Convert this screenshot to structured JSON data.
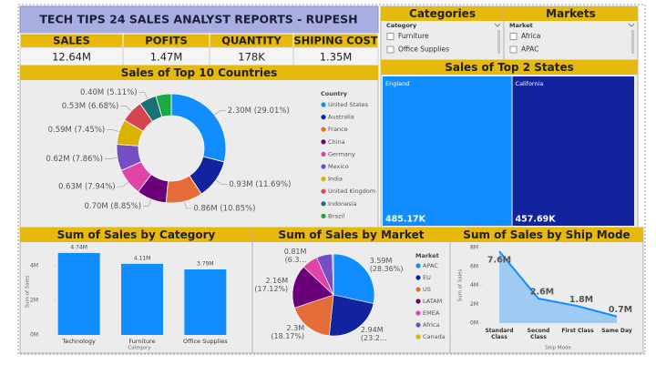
{
  "header": {
    "title": "TECH TIPS 24 SALES ANALYST REPORTS - RUPESH"
  },
  "kpis": [
    {
      "label": "SALES",
      "value": "12.64M"
    },
    {
      "label": "POFITS",
      "value": "1.47M"
    },
    {
      "label": "QUANTITY",
      "value": "178K"
    },
    {
      "label": "SHIPING COST",
      "value": "1.35M"
    }
  ],
  "slicers": [
    {
      "title": "Categories",
      "field": "Category",
      "items": [
        "Furniture",
        "Office Supplies"
      ]
    },
    {
      "title": "Markets",
      "field": "Market",
      "items": [
        "Africa",
        "APAC"
      ]
    }
  ],
  "chart_data": [
    {
      "type": "donut",
      "title": "Sales of Top 10 Countries",
      "legend_title": "Country",
      "categories": [
        "United States",
        "Australia",
        "France",
        "China",
        "Germany",
        "Mexico",
        "India",
        "United Kingdom",
        "Indonesia",
        "Brazil"
      ],
      "values": [
        29.01,
        11.69,
        10.85,
        8.85,
        7.94,
        7.86,
        7.45,
        6.68,
        5.11,
        4.56
      ],
      "value_labels": [
        "2.30M (29.01%)",
        "0.93M (11.69%)",
        "0.86M (10.85%)",
        "0.70M (8.85%)",
        "0.63M (7.94%)",
        "0.62M (7.86%)",
        "0.59M (7.45%)",
        "0.53M (6.68%)",
        "0.40M (5.11%)",
        null
      ],
      "colors": [
        "#118dff",
        "#12239e",
        "#e66c37",
        "#6b007b",
        "#e044a7",
        "#744ec2",
        "#d9b300",
        "#d64550",
        "#197278",
        "#1aab40"
      ]
    },
    {
      "type": "treemap",
      "title": "Sales of Top 2 States",
      "categories": [
        "England",
        "California"
      ],
      "values": [
        485.17,
        457.69
      ],
      "value_labels": [
        "485.17K",
        "457.69K"
      ],
      "colors": [
        "#118dff",
        "#12239e"
      ]
    },
    {
      "type": "bar",
      "title": "Sum of Sales by Category",
      "categories": [
        "Technology",
        "Furniture",
        "Office Supplies"
      ],
      "values": [
        4.74,
        4.11,
        3.79
      ],
      "value_labels": [
        "4.74M",
        "4.11M",
        "3.79M"
      ],
      "color": "#118dff",
      "ylim": [
        0,
        5
      ],
      "yticks": [
        {
          "value": 0,
          "label": "0M"
        },
        {
          "value": 2,
          "label": "2M"
        },
        {
          "value": 4,
          "label": "4M"
        }
      ],
      "y_label": "Sum of Sales",
      "x_label": "Category"
    },
    {
      "type": "pie",
      "title": "Sum of Sales by Market",
      "legend_title": "Market",
      "categories": [
        "APAC",
        "EU",
        "US",
        "LATAM",
        "EMEA",
        "Africa",
        "Canada"
      ],
      "values": [
        28.36,
        23.2,
        18.17,
        17.12,
        6.3,
        6.16,
        0.52
      ],
      "value_labels": [
        "3.59M (28.36%)",
        "2.94M (23.2…",
        "2.3M (18.17%)",
        "2.16M (17.12%)",
        "0.81M (6.3…",
        null,
        null
      ],
      "colors": [
        "#118dff",
        "#12239e",
        "#e66c37",
        "#6b007b",
        "#e044a7",
        "#744ec2",
        "#d9b300"
      ]
    },
    {
      "type": "area",
      "title": "Sum of Sales by Ship Mode",
      "categories": [
        "Standard Class",
        "Second Class",
        "First Class",
        "Same Day"
      ],
      "values": [
        7.6,
        2.6,
        1.8,
        0.7
      ],
      "value_labels": [
        "7.6M",
        "2.6M",
        "1.8M",
        "0.7M"
      ],
      "color": "#118dff",
      "ylim": [
        0,
        8
      ],
      "yticks": [
        {
          "value": 0,
          "label": "0M"
        },
        {
          "value": 2,
          "label": "2M"
        },
        {
          "value": 4,
          "label": "4M"
        },
        {
          "value": 6,
          "label": "6M"
        },
        {
          "value": 8,
          "label": "8M"
        }
      ],
      "y_label": "Sum of Sales",
      "x_label": "Ship Mode"
    }
  ]
}
